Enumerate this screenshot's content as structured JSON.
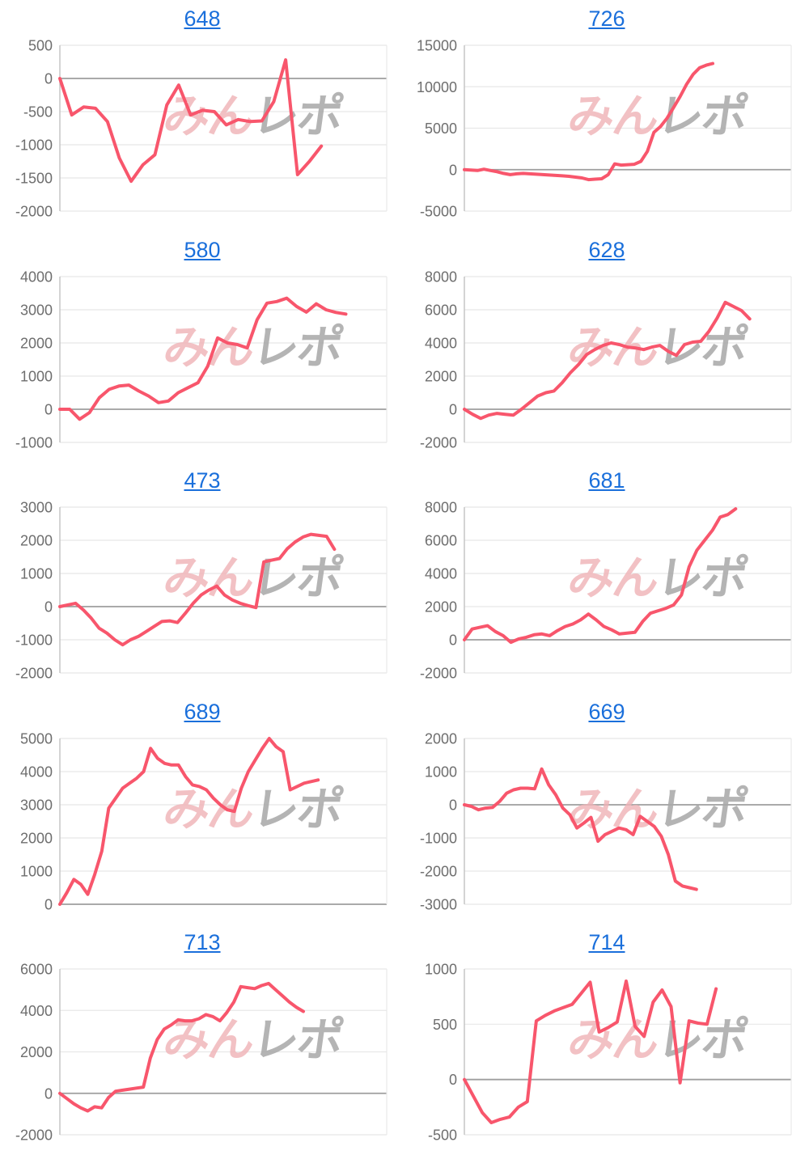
{
  "page": {
    "background": "#ffffff"
  },
  "colors": {
    "line": "#f8566c",
    "grid": "#e8e8e8",
    "zero_line": "#9e9e9e",
    "axis": "#c2c2c2",
    "tick_label": "#6e6e6e",
    "title_link": "#1a6fdb",
    "watermark_pink": "#f0b2b6",
    "watermark_gray": "#a8a8a8"
  },
  "watermark": {
    "pink_text": "みん",
    "gray_text": "レポ"
  },
  "layout": {
    "columns": 2,
    "rows": 5,
    "grid": true,
    "legend": "none",
    "x_axis_labels": "none"
  },
  "chart_data": [
    {
      "type": "line",
      "title": "648",
      "y_ticks": [
        500,
        0,
        -500,
        -1000,
        -1500,
        -2000
      ],
      "ylim": [
        -2000,
        500
      ],
      "end_fraction": 0.8,
      "values": [
        0,
        -550,
        -430,
        -450,
        -650,
        -1200,
        -1550,
        -1300,
        -1150,
        -400,
        -100,
        -550,
        -480,
        -500,
        -700,
        -620,
        -650,
        -640,
        -350,
        280,
        -1450,
        -1250,
        -1020
      ]
    },
    {
      "type": "line",
      "title": "726",
      "y_ticks": [
        15000,
        10000,
        5000,
        0,
        -5000
      ],
      "ylim": [
        -5000,
        15000
      ],
      "end_fraction": 0.76,
      "values": [
        0,
        -50,
        -100,
        50,
        -100,
        -250,
        -450,
        -600,
        -500,
        -450,
        -500,
        -550,
        -600,
        -650,
        -700,
        -750,
        -800,
        -900,
        -1000,
        -1200,
        -1150,
        -1100,
        -600,
        700,
        550,
        600,
        650,
        1000,
        2200,
        4500,
        5200,
        6200,
        7500,
        8800,
        10300,
        11500,
        12300,
        12600,
        12800
      ]
    },
    {
      "type": "line",
      "title": "580",
      "y_ticks": [
        4000,
        3000,
        2000,
        1000,
        0,
        -1000
      ],
      "ylim": [
        -1000,
        4000
      ],
      "end_fraction": 0.875,
      "values": [
        0,
        0,
        -300,
        -100,
        350,
        600,
        700,
        730,
        550,
        400,
        200,
        250,
        500,
        650,
        800,
        1300,
        2150,
        2000,
        1950,
        1850,
        2700,
        3200,
        3250,
        3350,
        3100,
        2930,
        3180,
        3000,
        2920,
        2870
      ]
    },
    {
      "type": "line",
      "title": "628",
      "y_ticks": [
        8000,
        6000,
        4000,
        2000,
        0,
        -2000
      ],
      "ylim": [
        -2000,
        8000
      ],
      "end_fraction": 0.873,
      "values": [
        0,
        -300,
        -550,
        -350,
        -250,
        -300,
        -350,
        0,
        400,
        800,
        1000,
        1100,
        1600,
        2200,
        2700,
        3300,
        3600,
        3850,
        4000,
        3900,
        3750,
        3700,
        3600,
        3750,
        3850,
        3500,
        3250,
        3900,
        4050,
        4100,
        4700,
        5500,
        6450,
        6200,
        5950,
        5450
      ]
    },
    {
      "type": "line",
      "title": "473",
      "y_ticks": [
        3000,
        2000,
        1000,
        0,
        -1000,
        -2000
      ],
      "ylim": [
        -2000,
        3000
      ],
      "end_fraction": 0.84,
      "values": [
        0,
        50,
        100,
        -100,
        -350,
        -650,
        -800,
        -1000,
        -1150,
        -1000,
        -900,
        -750,
        -600,
        -450,
        -430,
        -480,
        -200,
        100,
        350,
        500,
        620,
        350,
        200,
        100,
        30,
        -30,
        1350,
        1400,
        1450,
        1750,
        1950,
        2100,
        2180,
        2150,
        2120,
        1730
      ]
    },
    {
      "type": "line",
      "title": "681",
      "y_ticks": [
        8000,
        6000,
        4000,
        2000,
        0,
        -2000
      ],
      "ylim": [
        -2000,
        8000
      ],
      "end_fraction": 0.83,
      "values": [
        0,
        650,
        750,
        850,
        500,
        250,
        -150,
        50,
        150,
        300,
        350,
        250,
        550,
        800,
        950,
        1200,
        1550,
        1200,
        800,
        600,
        350,
        400,
        450,
        1100,
        1600,
        1750,
        1900,
        2100,
        2700,
        4400,
        5400,
        6000,
        6600,
        7400,
        7550,
        7900
      ]
    },
    {
      "type": "line",
      "title": "689",
      "y_ticks": [
        5000,
        4000,
        3000,
        2000,
        1000,
        0
      ],
      "ylim": [
        0,
        5000
      ],
      "end_fraction": 0.79,
      "values": [
        0,
        350,
        750,
        600,
        300,
        900,
        1600,
        2900,
        3200,
        3500,
        3650,
        3800,
        4000,
        4700,
        4400,
        4250,
        4200,
        4200,
        3850,
        3600,
        3550,
        3450,
        3200,
        3000,
        2850,
        2800,
        3500,
        4000,
        4350,
        4700,
        5000,
        4750,
        4600,
        3450,
        3550,
        3650,
        3700,
        3750
      ]
    },
    {
      "type": "line",
      "title": "669",
      "y_ticks": [
        2000,
        1000,
        0,
        -1000,
        -2000,
        -3000
      ],
      "ylim": [
        -3000,
        2000
      ],
      "end_fraction": 0.71,
      "values": [
        0,
        -50,
        -150,
        -100,
        -80,
        100,
        350,
        450,
        500,
        500,
        480,
        1080,
        600,
        300,
        -100,
        -300,
        -700,
        -550,
        -380,
        -1100,
        -900,
        -800,
        -700,
        -750,
        -900,
        -350,
        -500,
        -650,
        -950,
        -1500,
        -2300,
        -2450,
        -2500,
        -2550
      ]
    },
    {
      "type": "line",
      "title": "713",
      "y_ticks": [
        6000,
        4000,
        2000,
        0,
        -2000
      ],
      "ylim": [
        -2000,
        6000
      ],
      "end_fraction": 0.745,
      "values": [
        0,
        -250,
        -500,
        -700,
        -850,
        -650,
        -700,
        -200,
        100,
        150,
        200,
        250,
        300,
        1700,
        2600,
        3100,
        3300,
        3550,
        3500,
        3500,
        3600,
        3800,
        3700,
        3500,
        3900,
        4400,
        5150,
        5100,
        5050,
        5200,
        5300,
        5000,
        4700,
        4400,
        4150,
        3950
      ]
    },
    {
      "type": "line",
      "title": "714",
      "y_ticks": [
        1000,
        500,
        0,
        -500
      ],
      "ylim": [
        -500,
        1000
      ],
      "end_fraction": 0.77,
      "values": [
        0,
        -150,
        -300,
        -390,
        -360,
        -340,
        -250,
        -200,
        530,
        580,
        620,
        650,
        680,
        780,
        880,
        430,
        470,
        520,
        890,
        480,
        390,
        700,
        810,
        660,
        -30,
        530,
        510,
        500,
        820
      ]
    }
  ]
}
